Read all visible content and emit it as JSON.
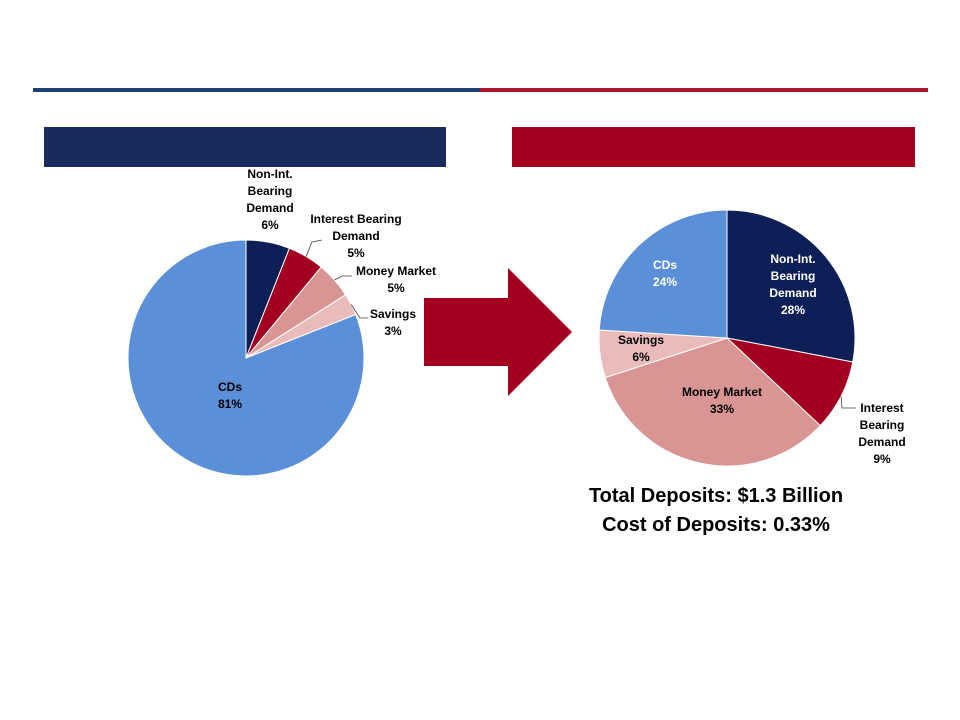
{
  "colors": {
    "navy": "#1b2a5c",
    "crimson": "#a30021",
    "rule_left": "#1f3d7a",
    "rule_right": "#a8182e"
  },
  "arrow": {
    "icon": "right-arrow-icon",
    "color": "#a30021"
  },
  "chart_data": [
    {
      "type": "pie",
      "title": "",
      "series": [
        {
          "label": "Non-Int. Bearing Demand",
          "value": 6,
          "value_label": "6%",
          "color": "#0e1f57"
        },
        {
          "label": "Interest Bearing Demand",
          "value": 5,
          "value_label": "5%",
          "color": "#a30021"
        },
        {
          "label": "Money Market",
          "value": 5,
          "value_label": "5%",
          "color": "#d99594"
        },
        {
          "label": "Savings",
          "value": 3,
          "value_label": "3%",
          "color": "#e9bcbb"
        },
        {
          "label": "CDs",
          "value": 81,
          "value_label": "81%",
          "color": "#5b8fd7"
        }
      ]
    },
    {
      "type": "pie",
      "title": "",
      "series": [
        {
          "label": "Non-Int. Bearing Demand",
          "value": 28,
          "value_label": "28%",
          "color": "#0e1f57"
        },
        {
          "label": "Interest Bearing Demand",
          "value": 9,
          "value_label": "9%",
          "color": "#a30021"
        },
        {
          "label": "Money Market",
          "value": 33,
          "value_label": "33%",
          "color": "#d99594"
        },
        {
          "label": "Savings",
          "value": 6,
          "value_label": "6%",
          "color": "#e9bcbb"
        },
        {
          "label": "CDs",
          "value": 24,
          "value_label": "24%",
          "color": "#5b8fd7"
        }
      ]
    }
  ],
  "summary": {
    "total_deposits": "Total Deposits: $1.3 Billion",
    "cost_of_deposits": "Cost of Deposits: 0.33%"
  }
}
